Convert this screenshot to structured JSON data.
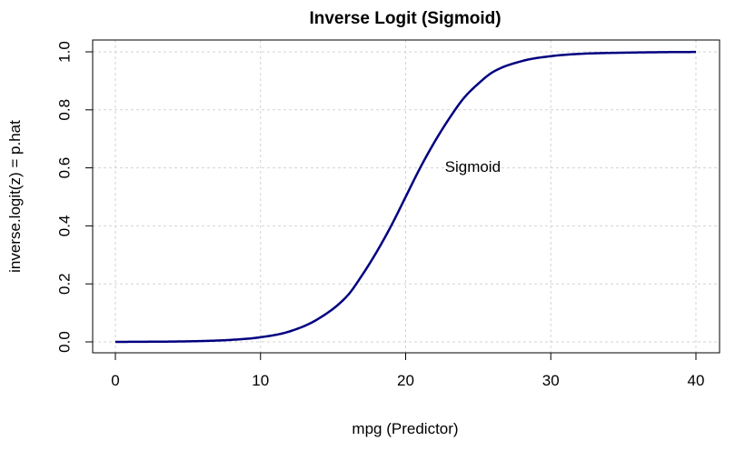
{
  "chart_data": {
    "type": "line",
    "title": "Inverse Logit (Sigmoid)",
    "xlabel": "mpg (Predictor)",
    "ylabel": "inverse.logit(z) = p.hat",
    "xlim": [
      0,
      40
    ],
    "ylim": [
      0,
      1
    ],
    "x_ticks": [
      0,
      10,
      20,
      30,
      40
    ],
    "x_tick_labels": [
      "0",
      "10",
      "20",
      "30",
      "40"
    ],
    "y_ticks": [
      0,
      0.2,
      0.4,
      0.6,
      0.8,
      1.0
    ],
    "y_tick_labels": [
      "0.0",
      "0.2",
      "0.4",
      "0.6",
      "0.8",
      "1.0"
    ],
    "grid": true,
    "series": [
      {
        "color": "#000080",
        "x": [
          0,
          2,
          4,
          6,
          8,
          10,
          12,
          14,
          16,
          17,
          18,
          19,
          20,
          21,
          22,
          23,
          24,
          25,
          26,
          28,
          30,
          32,
          35,
          38,
          40
        ],
        "y": [
          0.0,
          0.0005,
          0.0012,
          0.003,
          0.007,
          0.016,
          0.036,
          0.08,
          0.16,
          0.23,
          0.31,
          0.4,
          0.5,
          0.6,
          0.69,
          0.77,
          0.84,
          0.89,
          0.93,
          0.968,
          0.985,
          0.993,
          0.997,
          0.999,
          0.9995
        ]
      }
    ],
    "annotations": [
      {
        "text": "Sigmoid",
        "x": 22.7,
        "y": 0.6
      }
    ]
  }
}
